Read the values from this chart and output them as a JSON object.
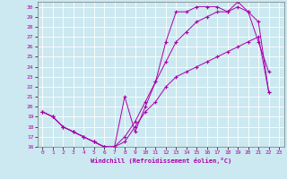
{
  "xlabel": "Windchill (Refroidissement éolien,°C)",
  "background_color": "#cce8f0",
  "grid_color": "#ffffff",
  "line_color": "#aa00aa",
  "xlim": [
    -0.5,
    23.5
  ],
  "ylim": [
    16,
    30.5
  ],
  "xticks": [
    0,
    1,
    2,
    3,
    4,
    5,
    6,
    7,
    8,
    9,
    10,
    11,
    12,
    13,
    14,
    15,
    16,
    17,
    18,
    19,
    20,
    21,
    22,
    23
  ],
  "yticks": [
    16,
    17,
    18,
    19,
    20,
    21,
    22,
    23,
    24,
    25,
    26,
    27,
    28,
    29,
    30
  ],
  "line1_x": [
    0,
    1,
    2,
    3,
    4,
    5,
    6,
    7,
    8,
    9,
    10,
    11,
    12,
    13,
    14,
    15,
    16,
    17,
    18,
    19,
    20,
    21,
    22
  ],
  "line1_y": [
    19.5,
    19.0,
    18.0,
    17.5,
    17.0,
    16.5,
    16.0,
    16.0,
    16.5,
    18.0,
    19.5,
    20.5,
    22.0,
    23.0,
    23.5,
    24.0,
    24.5,
    25.0,
    25.5,
    26.0,
    26.5,
    27.0,
    21.5
  ],
  "line2_x": [
    0,
    1,
    2,
    3,
    4,
    5,
    6,
    7,
    8,
    9,
    10,
    11,
    12,
    13,
    14,
    15,
    16,
    17,
    18,
    19,
    20,
    21,
    22
  ],
  "line2_y": [
    19.5,
    19.0,
    18.0,
    17.5,
    17.0,
    16.5,
    16.0,
    16.0,
    17.0,
    18.5,
    20.5,
    22.5,
    24.5,
    26.5,
    27.5,
    28.5,
    29.0,
    29.5,
    29.5,
    30.0,
    29.5,
    28.5,
    21.5
  ],
  "line3_x": [
    0,
    1,
    2,
    3,
    4,
    5,
    6,
    7,
    8,
    9,
    10,
    11,
    12,
    13,
    14,
    15,
    16,
    17,
    18,
    19,
    20,
    21,
    22
  ],
  "line3_y": [
    19.5,
    19.0,
    18.0,
    17.5,
    17.0,
    16.5,
    16.0,
    16.0,
    21.0,
    17.5,
    20.0,
    22.5,
    26.5,
    29.5,
    29.5,
    30.0,
    30.0,
    30.0,
    29.5,
    30.5,
    29.5,
    26.5,
    23.5
  ]
}
